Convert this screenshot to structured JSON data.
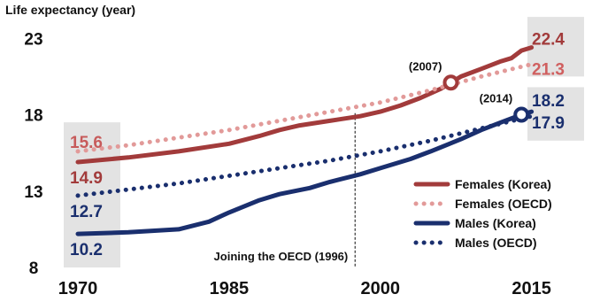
{
  "chart_data": {
    "type": "line",
    "ylabel": "Life expectancy (year)",
    "ylim": [
      8,
      24
    ],
    "yticks": [
      8,
      13,
      18,
      23
    ],
    "xlim": [
      1970,
      2016
    ],
    "xticks": [
      1970,
      1985,
      2000,
      2015
    ],
    "series": [
      {
        "name": "Females (Korea)",
        "color": "#a23b3b",
        "style": "solid",
        "x": [
          1970,
          1975,
          1980,
          1985,
          1988,
          1990,
          1992,
          1995,
          1998,
          2000,
          2002,
          2004,
          2006,
          2007,
          2008,
          2010,
          2012,
          2013,
          2014,
          2015
        ],
        "values": [
          14.9,
          15.2,
          15.6,
          16.1,
          16.6,
          17.0,
          17.3,
          17.6,
          17.9,
          18.2,
          18.6,
          19.1,
          19.7,
          20.1,
          20.5,
          21.0,
          21.5,
          21.7,
          22.2,
          22.4
        ],
        "start_label": "14.9",
        "end_label": "22.4"
      },
      {
        "name": "Females (OECD)",
        "color": "#e29a99",
        "style": "dotted",
        "x": [
          1970,
          1975,
          1980,
          1985,
          1990,
          1995,
          2000,
          2005,
          2010,
          2015
        ],
        "values": [
          15.6,
          16.0,
          16.5,
          17.0,
          17.6,
          18.2,
          18.8,
          19.6,
          20.5,
          21.3
        ],
        "start_label": "15.6",
        "end_label": "21.3"
      },
      {
        "name": "Males (Korea)",
        "color": "#1a2f6e",
        "style": "solid",
        "x": [
          1970,
          1975,
          1980,
          1983,
          1985,
          1988,
          1990,
          1993,
          1995,
          1998,
          2000,
          2003,
          2005,
          2008,
          2010,
          2012,
          2014,
          2015
        ],
        "values": [
          10.2,
          10.3,
          10.5,
          11.0,
          11.6,
          12.4,
          12.8,
          13.2,
          13.6,
          14.1,
          14.5,
          15.1,
          15.6,
          16.4,
          17.0,
          17.5,
          18.0,
          18.2
        ],
        "start_label": "10.2",
        "end_label": "18.2"
      },
      {
        "name": "Males (OECD)",
        "color": "#1a2f6e",
        "style": "dotted",
        "x": [
          1970,
          1975,
          1980,
          1985,
          1990,
          1995,
          2000,
          2005,
          2010,
          2015
        ],
        "values": [
          12.7,
          13.1,
          13.5,
          14.0,
          14.5,
          15.0,
          15.6,
          16.3,
          17.1,
          17.9
        ],
        "start_label": "12.7",
        "end_label": "17.9"
      }
    ],
    "markers": [
      {
        "series": "Females (Korea)",
        "x": 2007,
        "y": 20.1,
        "label": "(2007)"
      },
      {
        "series": "Males (Korea)",
        "x": 2014,
        "y": 18.0,
        "label": "(2014)"
      }
    ],
    "vline": {
      "x": 1997.5,
      "label": "Joining the OECD (1996)"
    },
    "legend": {
      "position": "bottom-right"
    }
  }
}
